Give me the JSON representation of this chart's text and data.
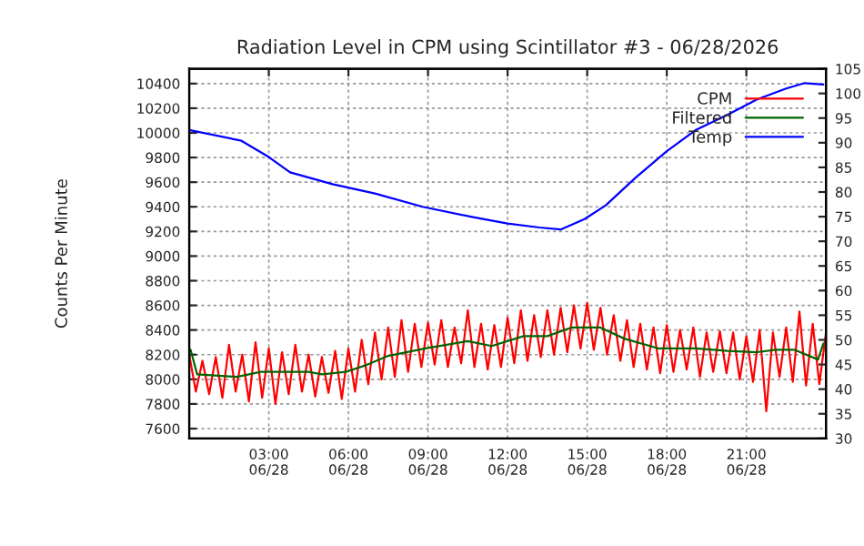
{
  "chart_data": {
    "type": "line",
    "title": "Radiation Level in CPM using Scintillator #3 - 06/28/2026",
    "ylabel": "Counts Per Minute",
    "xlim": [
      "2026-06-28T00:00",
      "2026-06-29T00:00"
    ],
    "xticks": [
      {
        "value": "2026-06-28T03:00",
        "label": "03:00\n06/28"
      },
      {
        "value": "2026-06-28T06:00",
        "label": "06:00\n06/28"
      },
      {
        "value": "2026-06-28T09:00",
        "label": "09:00\n06/28"
      },
      {
        "value": "2026-06-28T12:00",
        "label": "12:00\n06/28"
      },
      {
        "value": "2026-06-28T15:00",
        "label": "15:00\n06/28"
      },
      {
        "value": "2026-06-28T18:00",
        "label": "18:00\n06/28"
      },
      {
        "value": "2026-06-28T21:00",
        "label": "21:00\n06/28"
      }
    ],
    "ylim": [
      7520,
      10520
    ],
    "yticks": [
      7600,
      7800,
      8000,
      8200,
      8400,
      8600,
      8800,
      9000,
      9200,
      9400,
      9600,
      9800,
      10000,
      10200,
      10400
    ],
    "y2lim": [
      30,
      105
    ],
    "y2ticks": [
      30,
      35,
      40,
      45,
      50,
      55,
      60,
      65,
      70,
      75,
      80,
      85,
      90,
      95,
      100,
      105
    ],
    "grid": true,
    "legend": "top right",
    "line_style": "solid",
    "marker": "none",
    "series": [
      {
        "name": "CPM",
        "color": "#ff0000",
        "x": [
          "2026-06-28T00:00",
          "2026-06-28T00:15",
          "2026-06-28T00:30",
          "2026-06-28T00:45",
          "2026-06-28T01:00",
          "2026-06-28T01:15",
          "2026-06-28T01:30",
          "2026-06-28T01:45",
          "2026-06-28T02:00",
          "2026-06-28T02:15",
          "2026-06-28T02:30",
          "2026-06-28T02:45",
          "2026-06-28T03:00",
          "2026-06-28T03:15",
          "2026-06-28T03:30",
          "2026-06-28T03:45",
          "2026-06-28T04:00",
          "2026-06-28T04:15",
          "2026-06-28T04:30",
          "2026-06-28T04:45",
          "2026-06-28T05:00",
          "2026-06-28T05:15",
          "2026-06-28T05:30",
          "2026-06-28T05:45",
          "2026-06-28T06:00",
          "2026-06-28T06:15",
          "2026-06-28T06:30",
          "2026-06-28T06:45",
          "2026-06-28T07:00",
          "2026-06-28T07:15",
          "2026-06-28T07:30",
          "2026-06-28T07:45",
          "2026-06-28T08:00",
          "2026-06-28T08:15",
          "2026-06-28T08:30",
          "2026-06-28T08:45",
          "2026-06-28T09:00",
          "2026-06-28T09:15",
          "2026-06-28T09:30",
          "2026-06-28T09:45",
          "2026-06-28T10:00",
          "2026-06-28T10:15",
          "2026-06-28T10:30",
          "2026-06-28T10:45",
          "2026-06-28T11:00",
          "2026-06-28T11:15",
          "2026-06-28T11:30",
          "2026-06-28T11:45",
          "2026-06-28T12:00",
          "2026-06-28T12:15",
          "2026-06-28T12:30",
          "2026-06-28T12:45",
          "2026-06-28T13:00",
          "2026-06-28T13:15",
          "2026-06-28T13:30",
          "2026-06-28T13:45",
          "2026-06-28T14:00",
          "2026-06-28T14:15",
          "2026-06-28T14:30",
          "2026-06-28T14:45",
          "2026-06-28T15:00",
          "2026-06-28T15:15",
          "2026-06-28T15:30",
          "2026-06-28T15:45",
          "2026-06-28T16:00",
          "2026-06-28T16:15",
          "2026-06-28T16:30",
          "2026-06-28T16:45",
          "2026-06-28T17:00",
          "2026-06-28T17:15",
          "2026-06-28T17:30",
          "2026-06-28T17:45",
          "2026-06-28T18:00",
          "2026-06-28T18:15",
          "2026-06-28T18:30",
          "2026-06-28T18:45",
          "2026-06-28T19:00",
          "2026-06-28T19:15",
          "2026-06-28T19:30",
          "2026-06-28T19:45",
          "2026-06-28T20:00",
          "2026-06-28T20:15",
          "2026-06-28T20:30",
          "2026-06-28T20:45",
          "2026-06-28T21:00",
          "2026-06-28T21:15",
          "2026-06-28T21:30",
          "2026-06-28T21:45",
          "2026-06-28T22:00",
          "2026-06-28T22:15",
          "2026-06-28T22:30",
          "2026-06-28T22:45",
          "2026-06-28T23:00",
          "2026-06-28T23:15",
          "2026-06-28T23:30",
          "2026-06-28T23:45",
          "2026-06-29T00:00"
        ],
        "values": [
          8200,
          7900,
          8150,
          7880,
          8180,
          7850,
          8280,
          7900,
          8200,
          7820,
          8300,
          7850,
          8250,
          7800,
          8220,
          7880,
          8280,
          7900,
          8200,
          7860,
          8180,
          7890,
          8230,
          7840,
          8250,
          7900,
          8320,
          7960,
          8380,
          8000,
          8420,
          8020,
          8480,
          8060,
          8450,
          8100,
          8460,
          8120,
          8480,
          8100,
          8420,
          8130,
          8560,
          8100,
          8450,
          8080,
          8440,
          8100,
          8500,
          8130,
          8560,
          8150,
          8520,
          8180,
          8560,
          8200,
          8580,
          8220,
          8600,
          8250,
          8620,
          8240,
          8580,
          8200,
          8520,
          8150,
          8480,
          8100,
          8450,
          8080,
          8420,
          8050,
          8440,
          8060,
          8400,
          8080,
          8420,
          8020,
          8380,
          8060,
          8390,
          8050,
          8380,
          8000,
          8350,
          7980,
          8400,
          7740,
          8380,
          8020,
          8420,
          7980,
          8550,
          7950,
          8450,
          7960,
          8380
        ]
      },
      {
        "name": "Filtered",
        "color": "#006400",
        "x": [
          "2026-06-28T00:03",
          "2026-06-28T00:18",
          "2026-06-28T01:48",
          "2026-06-28T02:42",
          "2026-06-28T04:30",
          "2026-06-28T05:00",
          "2026-06-28T05:54",
          "2026-06-28T06:36",
          "2026-06-28T07:30",
          "2026-06-28T08:54",
          "2026-06-28T10:30",
          "2026-06-28T11:24",
          "2026-06-28T12:36",
          "2026-06-28T13:30",
          "2026-06-28T14:24",
          "2026-06-28T15:30",
          "2026-06-28T16:24",
          "2026-06-28T17:42",
          "2026-06-28T19:06",
          "2026-06-28T20:18",
          "2026-06-28T21:24",
          "2026-06-28T22:06",
          "2026-06-28T22:48",
          "2026-06-28T23:42",
          "2026-06-28T23:54"
        ],
        "values": [
          8240,
          8040,
          8020,
          8060,
          8060,
          8040,
          8060,
          8110,
          8190,
          8250,
          8310,
          8270,
          8350,
          8350,
          8420,
          8420,
          8330,
          8250,
          8250,
          8230,
          8220,
          8240,
          8240,
          8160,
          8290
        ]
      },
      {
        "name": "Temp",
        "color": "#0000ff",
        "axis": "y2",
        "x": [
          "2026-06-28T00:00",
          "2026-06-28T01:58",
          "2026-06-28T03:00",
          "2026-06-28T03:48",
          "2026-06-28T05:24",
          "2026-06-28T07:00",
          "2026-06-28T08:48",
          "2026-06-28T10:42",
          "2026-06-28T12:00",
          "2026-06-28T13:12",
          "2026-06-28T14:00",
          "2026-06-28T14:54",
          "2026-06-28T15:42",
          "2026-06-28T16:48",
          "2026-06-28T18:00",
          "2026-06-28T19:06",
          "2026-06-28T20:18",
          "2026-06-28T21:24",
          "2026-06-28T22:30",
          "2026-06-28T23:12",
          "2026-06-28T23:54"
        ],
        "values": [
          92.6,
          90.4,
          87.1,
          84.0,
          81.6,
          79.7,
          77.0,
          74.9,
          73.6,
          72.8,
          72.4,
          74.5,
          77.3,
          82.8,
          88.3,
          92.6,
          95.7,
          98.8,
          101.0,
          102.1,
          101.8
        ]
      }
    ]
  }
}
